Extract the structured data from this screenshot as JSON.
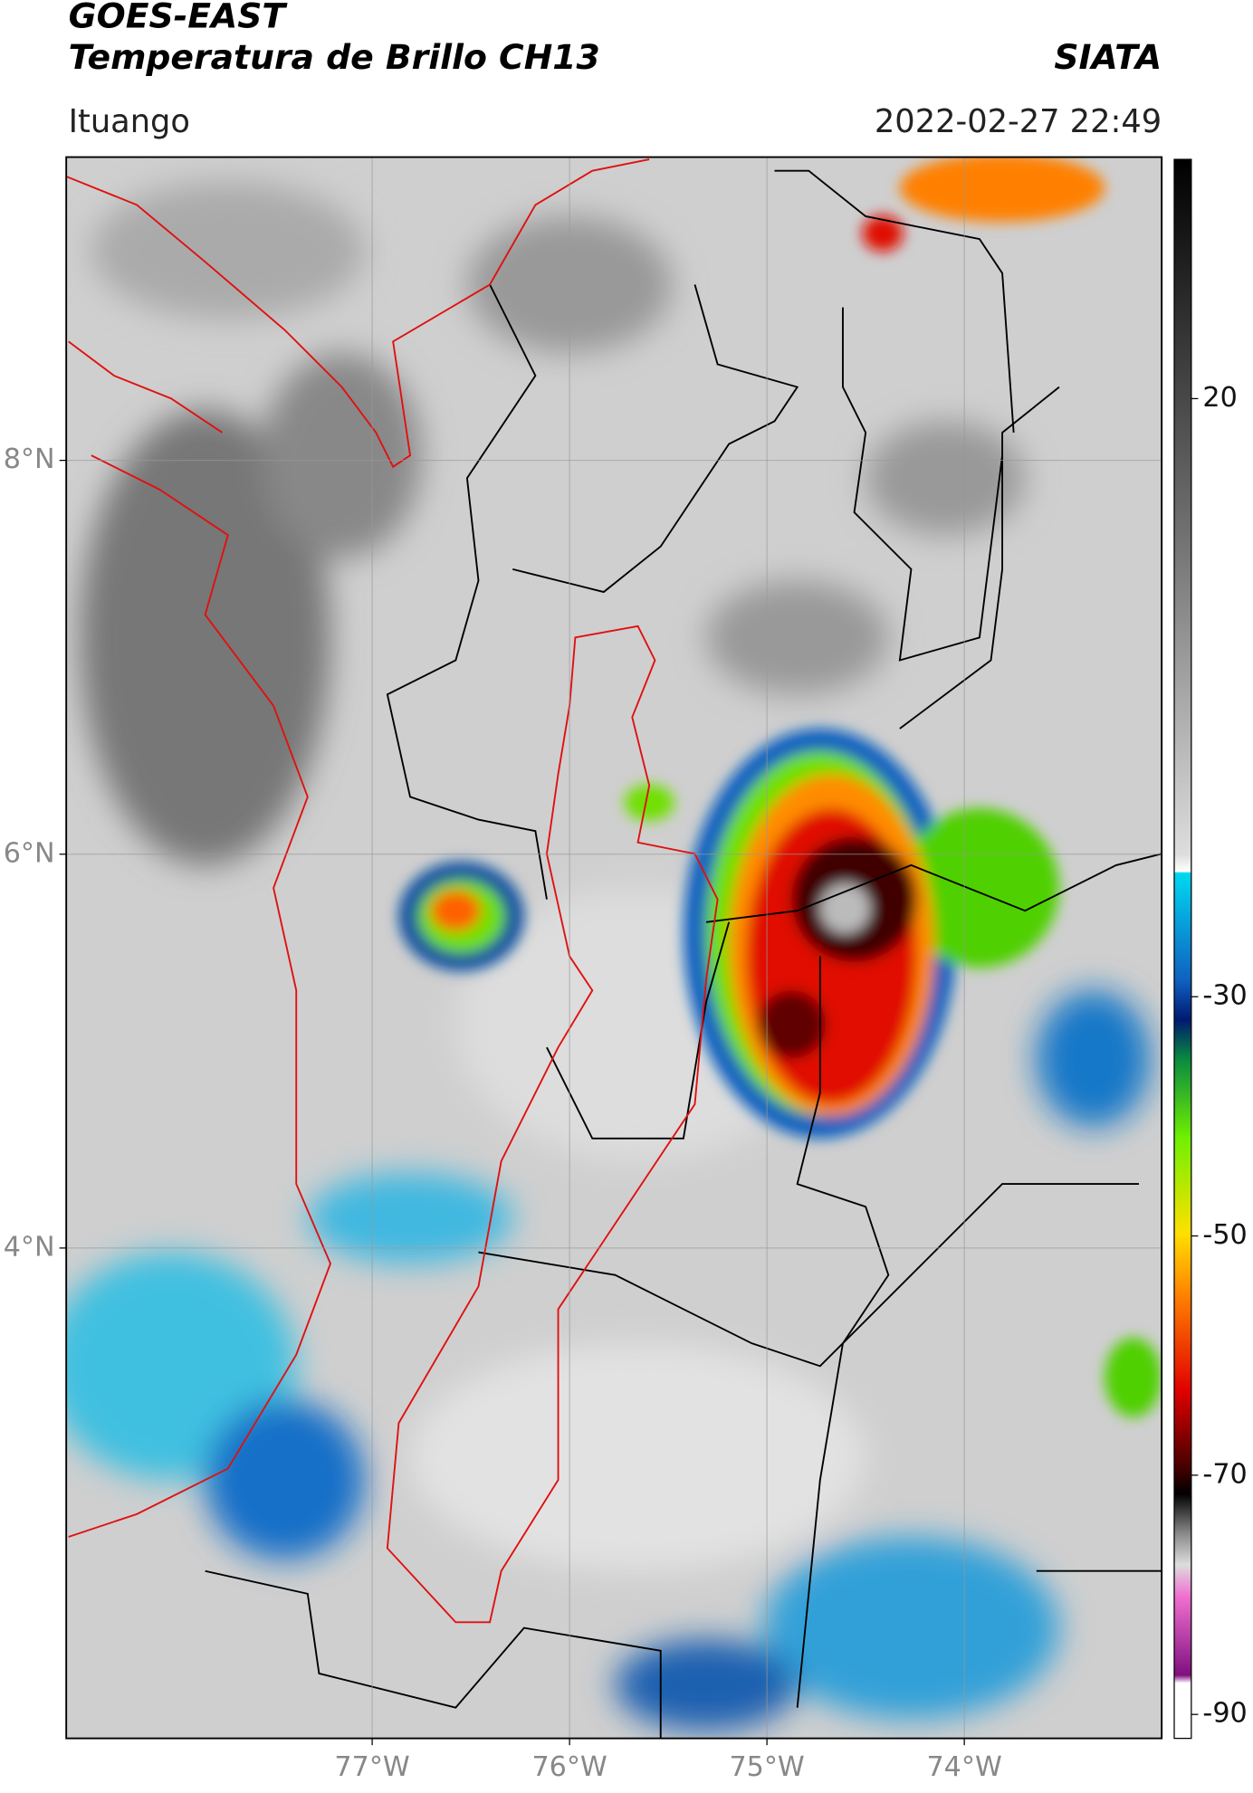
{
  "header": {
    "title": "GOES-EAST",
    "subtitle": "Temperatura de Brillo CH13",
    "brand": "SIATA",
    "location": "Ituango",
    "datetime": "2022-02-27 22:49"
  },
  "map": {
    "xlim": [
      -78.55,
      -73.0
    ],
    "ylim": [
      1.51,
      9.54
    ],
    "xticks": [
      {
        "value": -77,
        "label": "77°W"
      },
      {
        "value": -76,
        "label": "76°W"
      },
      {
        "value": -75,
        "label": "75°W"
      },
      {
        "value": -74,
        "label": "74°W"
      }
    ],
    "yticks": [
      {
        "value": 4,
        "label": "4°N"
      },
      {
        "value": 6,
        "label": "6°N"
      },
      {
        "value": 8,
        "label": "8°N"
      }
    ],
    "grid": true
  },
  "colorbar": {
    "lim": [
      -92,
      40
    ],
    "ticks": [
      20,
      -30,
      -50,
      -70,
      -90
    ]
  }
}
